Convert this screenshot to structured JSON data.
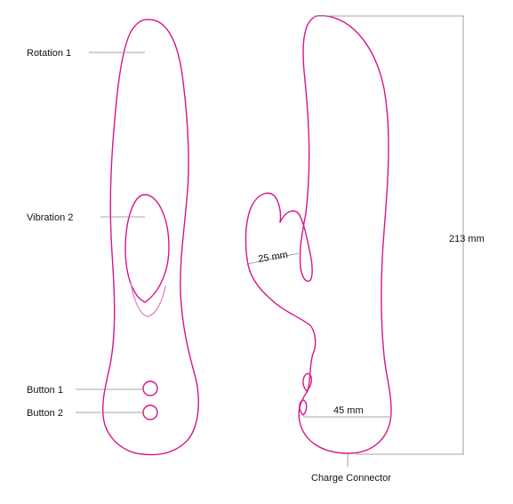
{
  "labels": {
    "rotation": "Rotation 1",
    "vibration": "Vibration 2",
    "button1": "Button 1",
    "button2": "Button 2",
    "width_small": "25 mm",
    "width_large": "45 mm",
    "height": "213 mm",
    "charge": "Charge Connector"
  },
  "colors": {
    "outline": "#d6158c",
    "outline_light": "#e68ac4",
    "leader": "#888888",
    "text": "#111111"
  }
}
